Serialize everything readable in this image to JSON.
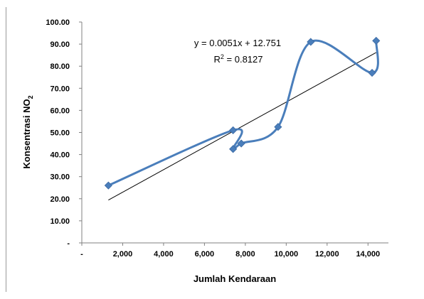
{
  "chart_data": {
    "type": "scatter",
    "xlabel": "Jumlah Kendaraan",
    "ylabel": "Konsentrasi NO",
    "ylabel_subscript": "2",
    "xlim": [
      0,
      15000
    ],
    "ylim": [
      0,
      100
    ],
    "x_ticks": [
      0,
      2000,
      4000,
      6000,
      8000,
      10000,
      12000,
      14000
    ],
    "x_tick_labels": [
      "-",
      "2,000",
      "4,000",
      "6,000",
      "8,000",
      "10,000",
      "12,000",
      "14,000"
    ],
    "y_ticks": [
      0,
      10,
      20,
      30,
      40,
      50,
      60,
      70,
      80,
      90,
      100
    ],
    "y_tick_labels": [
      "-",
      "10.00",
      "20.00",
      "30.00",
      "40.00",
      "50.00",
      "60.00",
      "70.00",
      "80.00",
      "90.00",
      "100.00"
    ],
    "series": [
      {
        "marker": "diamond",
        "smoothed_line": true,
        "color": "#4a7ebb",
        "x": [
          1300,
          7400,
          7400,
          7800,
          9600,
          11200,
          14200,
          14400
        ],
        "y": [
          26,
          51,
          42.5,
          45,
          52.5,
          91,
          77,
          91.5
        ]
      }
    ],
    "trendline": {
      "type": "linear",
      "slope": 0.0051,
      "intercept": 12.751,
      "x_range": [
        1300,
        14400
      ],
      "color": "#000000"
    },
    "equation_text": "y = 0.0051x + 12.751",
    "r2_prefix": "R",
    "r2_exp": "2",
    "r2_suffix": " = 0.8127",
    "legend": "none",
    "grid": false
  }
}
